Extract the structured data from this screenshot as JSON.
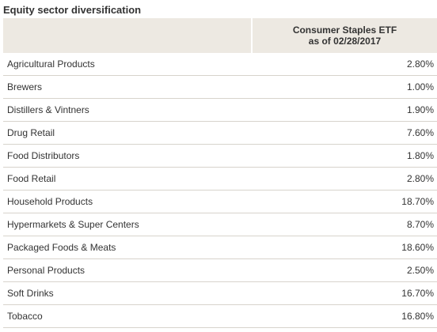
{
  "title": "Equity sector diversification",
  "header": {
    "sector": "",
    "fund_line1": "Consumer Staples ETF",
    "fund_line2": "as of 02/28/2017"
  },
  "rows": [
    {
      "sector": "Agricultural Products",
      "value": "2.80%"
    },
    {
      "sector": "Brewers",
      "value": "1.00%"
    },
    {
      "sector": "Distillers & Vintners",
      "value": "1.90%"
    },
    {
      "sector": "Drug Retail",
      "value": "7.60%"
    },
    {
      "sector": "Food Distributors",
      "value": "1.80%"
    },
    {
      "sector": "Food Retail",
      "value": "2.80%"
    },
    {
      "sector": "Household Products",
      "value": "18.70%"
    },
    {
      "sector": "Hypermarkets & Super Centers",
      "value": "8.70%"
    },
    {
      "sector": "Packaged Foods & Meats",
      "value": "18.60%"
    },
    {
      "sector": "Personal Products",
      "value": "2.50%"
    },
    {
      "sector": "Soft Drinks",
      "value": "16.70%"
    },
    {
      "sector": "Tobacco",
      "value": "16.80%"
    }
  ],
  "colors": {
    "header_background": "#ede9e2",
    "row_divider": "#d7d3cc",
    "text": "#333333"
  }
}
